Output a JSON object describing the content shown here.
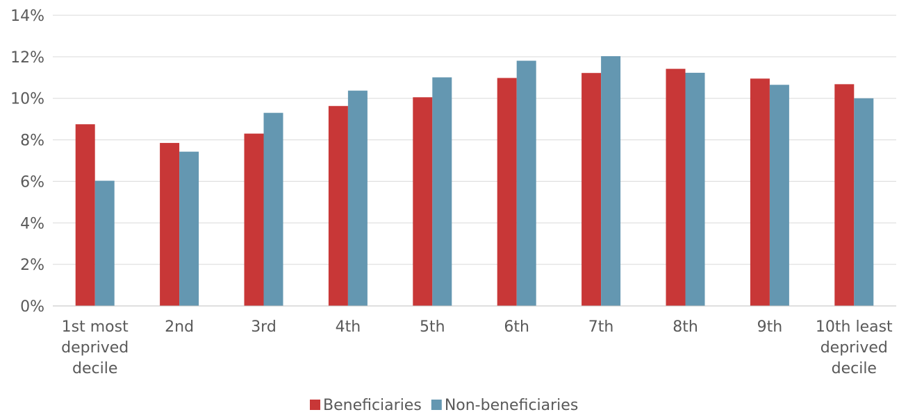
{
  "chart_data": {
    "type": "bar",
    "categories": [
      [
        "1st most",
        "deprived",
        "decile"
      ],
      [
        "2nd"
      ],
      [
        "3rd"
      ],
      [
        "4th"
      ],
      [
        "5th"
      ],
      [
        "6th"
      ],
      [
        "7th"
      ],
      [
        "8th"
      ],
      [
        "9th"
      ],
      [
        "10th least",
        "deprived",
        "decile"
      ]
    ],
    "series": [
      {
        "name": "Beneficiaries",
        "color": "#c83737",
        "values": [
          8.75,
          7.85,
          8.3,
          9.63,
          10.05,
          10.98,
          11.22,
          11.42,
          10.95,
          10.68
        ]
      },
      {
        "name": "Non-beneficiaries",
        "color": "#6497b1",
        "values": [
          6.03,
          7.43,
          9.3,
          10.37,
          11.01,
          11.81,
          12.03,
          11.23,
          10.65,
          10.0
        ]
      }
    ],
    "ylim": [
      0,
      14
    ],
    "yticks": [
      0,
      2,
      4,
      6,
      8,
      10,
      12,
      14
    ],
    "ytick_labels": [
      "0%",
      "2%",
      "4%",
      "6%",
      "8%",
      "10%",
      "12%",
      "14%"
    ],
    "title": "",
    "xlabel": "",
    "ylabel": "",
    "grid": true,
    "legend_position": "bottom-center"
  }
}
